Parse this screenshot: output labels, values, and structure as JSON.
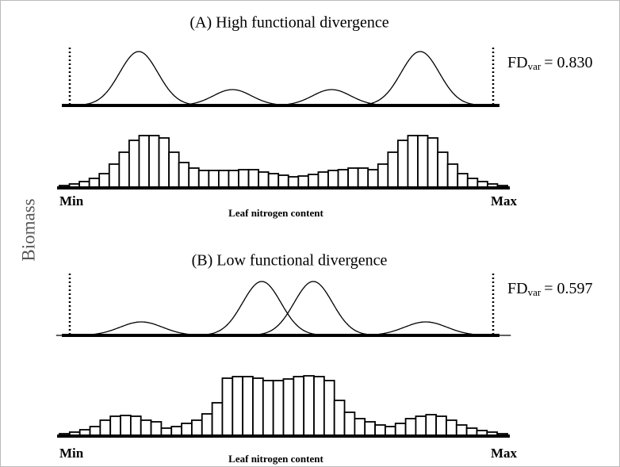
{
  "chart_data": [
    {
      "type": "divergence",
      "title": "(A) High functional divergence",
      "fd_label": "FD",
      "fd_subscript": "var",
      "fd_equation": "= 0.830",
      "curves": [
        {
          "center": 0.162,
          "sigma": 0.045,
          "height": 68
        },
        {
          "center": 0.382,
          "sigma": 0.045,
          "height": 20
        },
        {
          "center": 0.615,
          "sigma": 0.045,
          "height": 20
        },
        {
          "center": 0.823,
          "sigma": 0.045,
          "height": 68
        }
      ],
      "values": [
        3,
        5,
        8,
        12,
        18,
        30,
        45,
        60,
        66,
        66,
        63,
        45,
        32,
        25,
        22,
        22,
        22,
        22,
        23,
        23,
        20,
        18,
        16,
        14,
        15,
        17,
        20,
        22,
        23,
        25,
        25,
        23,
        30,
        45,
        60,
        66,
        66,
        63,
        45,
        30,
        18,
        12,
        8,
        5,
        3
      ],
      "x_min_label": "Min",
      "x_max_label": "Max",
      "x_label": "Leaf nitrogen content"
    },
    {
      "type": "divergence",
      "title": "(B) Low functional divergence",
      "fd_label": "FD",
      "fd_subscript": "var",
      "fd_equation": "= 0.597",
      "curves": [
        {
          "center": 0.168,
          "sigma": 0.05,
          "height": 17
        },
        {
          "center": 0.451,
          "sigma": 0.045,
          "height": 68
        },
        {
          "center": 0.572,
          "sigma": 0.045,
          "height": 68
        },
        {
          "center": 0.836,
          "sigma": 0.05,
          "height": 17
        }
      ],
      "values": [
        3,
        5,
        8,
        12,
        20,
        25,
        26,
        25,
        20,
        18,
        10,
        12,
        16,
        20,
        28,
        42,
        73,
        75,
        75,
        73,
        70,
        70,
        72,
        75,
        76,
        75,
        70,
        45,
        30,
        22,
        18,
        14,
        12,
        16,
        22,
        25,
        27,
        25,
        20,
        14,
        10,
        7,
        5,
        3
      ],
      "x_min_label": "Min",
      "x_max_label": "Max",
      "x_label": "Leaf nitrogen content"
    }
  ],
  "y_label": "Biomass"
}
